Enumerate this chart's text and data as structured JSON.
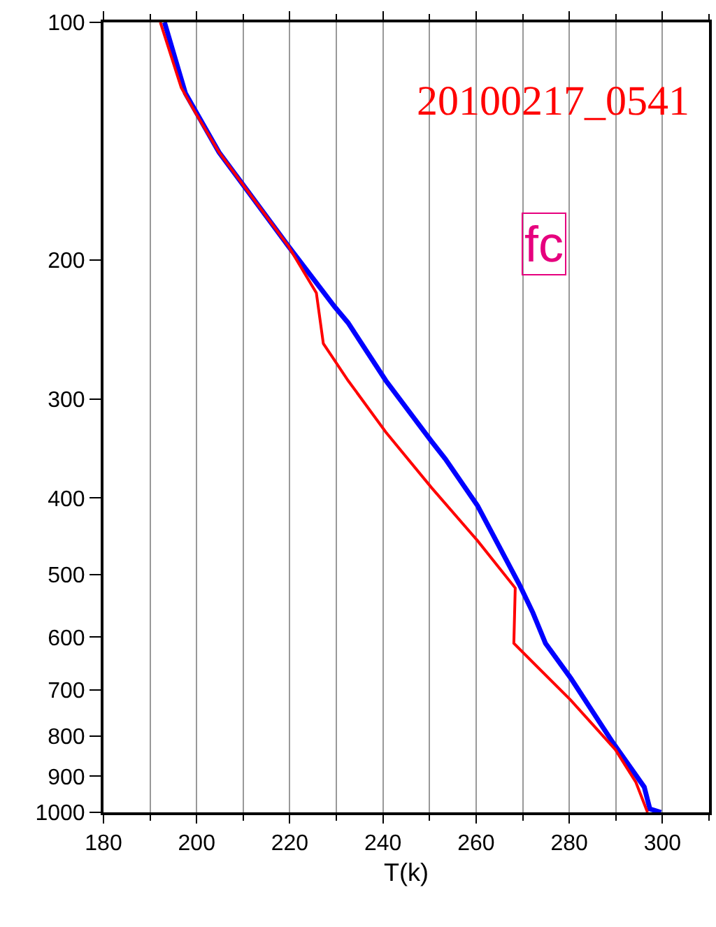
{
  "chart_data": {
    "type": "line",
    "xlabel": "T(k)",
    "annotations": [
      "20100217_0541",
      "fc"
    ],
    "xlim": [
      180,
      310
    ],
    "xticks": [
      180,
      200,
      220,
      240,
      260,
      280,
      300
    ],
    "ylim": [
      1000,
      100
    ],
    "yticks": [
      100,
      200,
      300,
      400,
      500,
      600,
      700,
      800,
      900,
      1000
    ],
    "log": true,
    "grid": "x",
    "series": [
      {
        "color": "#0000ff",
        "x": [
          193.1,
          197.6,
          204.8,
          219.7,
          229.6,
          232.5,
          240.6,
          250.4,
          253.4,
          260.3,
          269.3,
          272.2,
          274.9,
          280.3,
          289.3,
          296.1,
          297.3,
          299.7
        ],
        "values": [
          100,
          123,
          146,
          192,
          229,
          240,
          284,
          339,
          357,
          409,
          515,
          559,
          611,
          676,
          815,
          929,
          990,
          1000
        ]
      },
      {
        "color": "#ff0000",
        "x": [
          192.2,
          196.7,
          199.7,
          204.8,
          219.7,
          225.7,
          227.2,
          232.5,
          240.6,
          250.4,
          260.3,
          268.4,
          268.1,
          280.3,
          289.9,
          294.3,
          296.8
        ],
        "values": [
          100,
          121,
          130,
          146,
          192,
          220,
          255,
          284,
          330,
          388,
          453,
          520,
          611,
          721,
          833,
          916,
          1000
        ]
      }
    ]
  }
}
